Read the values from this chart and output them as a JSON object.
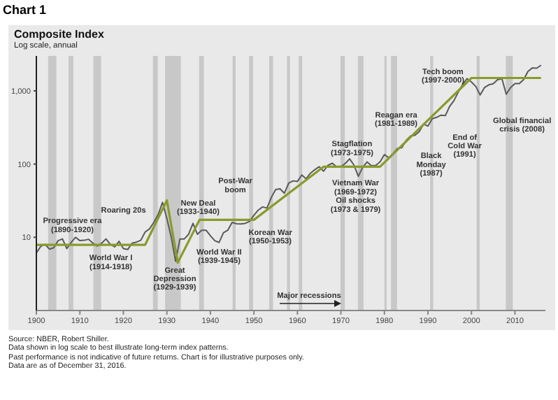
{
  "chart_data": {
    "type": "line",
    "title": "Chart 1",
    "subtitle": "Composite Index",
    "ylabel": "Log scale, annual",
    "log": true,
    "xlim": [
      1900,
      2017
    ],
    "ylim": [
      1,
      3000
    ],
    "xticks": [
      1900,
      1910,
      1920,
      1930,
      1940,
      1950,
      1960,
      1970,
      1980,
      1990,
      2000,
      2010
    ],
    "yticks": [
      10,
      100,
      {
        "value": 1000,
        "label": "1,000"
      }
    ],
    "series": [
      {
        "type": "line",
        "color": "#5a5a5a",
        "x": [
          1900,
          1901,
          1902,
          1903,
          1904,
          1905,
          1906,
          1907,
          1908,
          1909,
          1910,
          1911,
          1912,
          1913,
          1914,
          1915,
          1916,
          1917,
          1918,
          1919,
          1920,
          1921,
          1922,
          1923,
          1924,
          1925,
          1926,
          1927,
          1928,
          1929,
          1930,
          1931,
          1932,
          1933,
          1934,
          1935,
          1936,
          1937,
          1938,
          1939,
          1940,
          1941,
          1942,
          1943,
          1944,
          1945,
          1946,
          1947,
          1948,
          1949,
          1950,
          1951,
          1952,
          1953,
          1954,
          1955,
          1956,
          1957,
          1958,
          1959,
          1960,
          1961,
          1962,
          1963,
          1964,
          1965,
          1966,
          1967,
          1968,
          1969,
          1970,
          1971,
          1972,
          1973,
          1974,
          1975,
          1976,
          1977,
          1978,
          1979,
          1980,
          1981,
          1982,
          1983,
          1984,
          1985,
          1986,
          1987,
          1988,
          1989,
          1990,
          1991,
          1992,
          1993,
          1994,
          1995,
          1996,
          1997,
          1998,
          1999,
          2000,
          2001,
          2002,
          2003,
          2004,
          2005,
          2006,
          2007,
          2008,
          2009,
          2010,
          2011,
          2012,
          2013,
          2014,
          2015,
          2016
        ],
        "values": [
          6.1,
          7.5,
          8.0,
          6.9,
          7.2,
          9.0,
          9.5,
          7.0,
          8.5,
          10.0,
          9.0,
          9.1,
          9.4,
          8.3,
          7.6,
          8.3,
          9.5,
          8.0,
          7.4,
          8.8,
          7.0,
          6.8,
          8.3,
          8.6,
          9.1,
          11.8,
          13.0,
          16.0,
          20.5,
          30,
          18,
          10,
          4.7,
          9.5,
          9.5,
          11,
          15.5,
          11,
          12.5,
          12.5,
          10.5,
          9,
          8.5,
          11.5,
          12.5,
          16,
          15.3,
          15.2,
          15.5,
          16.5,
          20,
          23.5,
          26,
          25,
          35,
          45,
          46,
          40,
          55,
          59,
          58,
          71,
          63,
          75,
          84,
          92,
          80,
          96,
          103,
          92,
          92,
          102,
          118,
          97,
          68,
          90,
          107,
          95,
          96,
          107,
          135,
          122,
          140,
          164,
          167,
          211,
          242,
          247,
          277,
          353,
          330,
          417,
          435,
          466,
          459,
          615,
          740,
          970,
          1230,
          1470,
          1320,
          1150,
          880,
          1110,
          1210,
          1250,
          1420,
          1470,
          900,
          1110,
          1260,
          1260,
          1430,
          1850,
          2060,
          2040,
          2240
        ]
      },
      {
        "type": "line",
        "color": "#8a9a2b",
        "x": [
          1900,
          1925,
          1930,
          1932.5,
          1937.5,
          1950,
          1966,
          1979,
          2000,
          2016
        ],
        "values": [
          7.9,
          7.9,
          32,
          4.5,
          17.3,
          17.3,
          92,
          92,
          1500,
          1500
        ]
      }
    ],
    "bands": [
      {
        "axis": "x",
        "from": 1902.7,
        "to": 1904.6,
        "color": "#c8c8c8"
      },
      {
        "axis": "x",
        "from": 1907.4,
        "to": 1908.5,
        "color": "#c8c8c8"
      },
      {
        "axis": "x",
        "from": 1913.1,
        "to": 1914.9,
        "color": "#c8c8c8"
      },
      {
        "axis": "x",
        "from": 1926.8,
        "to": 1927.9,
        "color": "#c8c8c8"
      },
      {
        "axis": "x",
        "from": 1929.6,
        "to": 1933.2,
        "color": "#c8c8c8"
      },
      {
        "axis": "x",
        "from": 1937.4,
        "to": 1938.5,
        "color": "#c8c8c8"
      },
      {
        "axis": "x",
        "from": 1945.1,
        "to": 1945.8,
        "color": "#c8c8c8"
      },
      {
        "axis": "x",
        "from": 1948.9,
        "to": 1949.8,
        "color": "#c8c8c8"
      },
      {
        "axis": "x",
        "from": 1953.5,
        "to": 1954.4,
        "color": "#c8c8c8"
      },
      {
        "axis": "x",
        "from": 1957.6,
        "to": 1958.3,
        "color": "#c8c8c8"
      },
      {
        "axis": "x",
        "from": 1960.3,
        "to": 1961.1,
        "color": "#c8c8c8"
      },
      {
        "axis": "x",
        "from": 1969.9,
        "to": 1970.9,
        "color": "#c8c8c8"
      },
      {
        "axis": "x",
        "from": 1973.9,
        "to": 1975.2,
        "color": "#c8c8c8"
      },
      {
        "axis": "x",
        "from": 1980.0,
        "to": 1980.5,
        "color": "#c8c8c8"
      },
      {
        "axis": "x",
        "from": 1981.5,
        "to": 1982.9,
        "color": "#c8c8c8"
      },
      {
        "axis": "x",
        "from": 1990.5,
        "to": 1991.2,
        "color": "#c8c8c8"
      },
      {
        "axis": "x",
        "from": 2001.2,
        "to": 2001.9,
        "color": "#c8c8c8"
      },
      {
        "axis": "x",
        "from": 2007.9,
        "to": 2009.5,
        "color": "#c8c8c8"
      }
    ],
    "annotations": [
      "Progressive era\n(1890-1920)",
      "Roaring 20s",
      "World War I\n(1914-1918)",
      "New Deal\n(1933-1940)",
      "Great\nDepression\n(1929-1939)",
      "World War II\n(1939-1945)",
      "Post-War\nboom",
      "Korean War\n(1950-1953)",
      "Stagflation\n(1973-1975)",
      "Vietnam War\n(1969-1972)\nOil shocks\n(1973 & 1979)",
      "Reagan era\n(1981-1989)",
      "Black\nMonday\n(1987)",
      "End of\nCold War\n(1991)",
      "Tech boom\n(1997-2000)",
      "Global financial\ncrisis (2008)",
      "Major recessions",
      "Source: NBER, Robert Shiller.",
      "Data shown in log scale to best illustrate long-term index patterns.",
      "Past performance is not indicative of future returns. Chart is for illustrative purposes only.",
      "Data are as of December 31, 2016."
    ]
  }
}
